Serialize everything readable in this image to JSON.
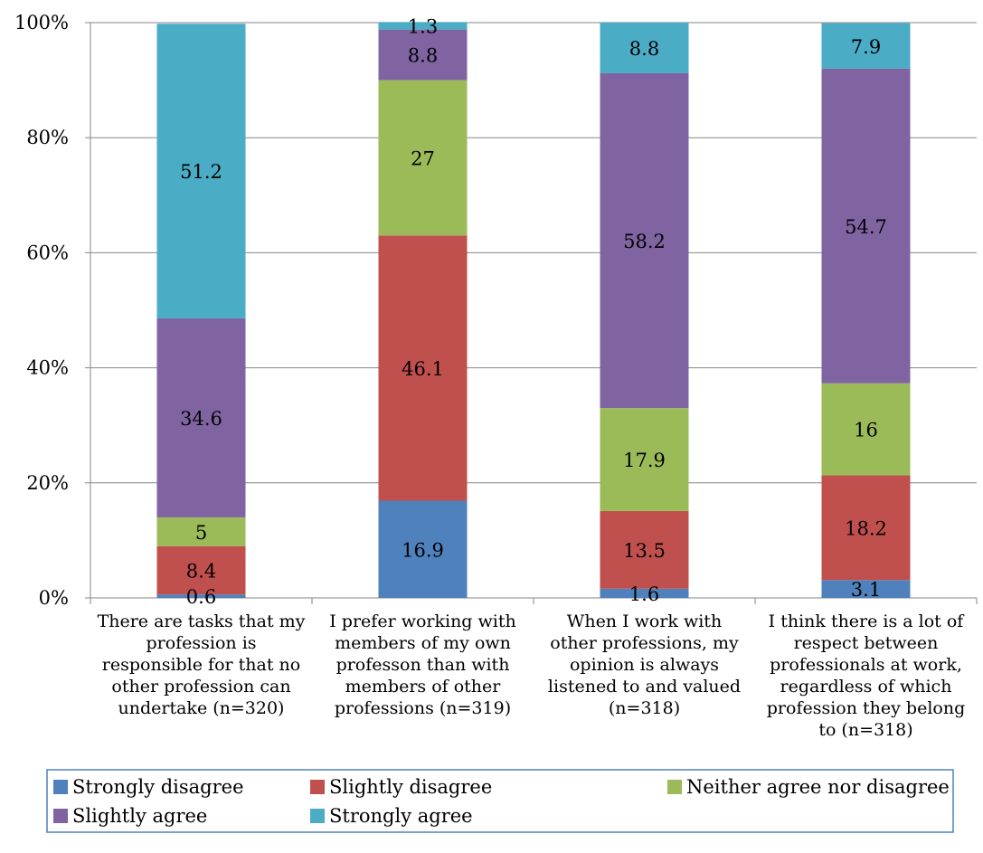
{
  "chart_data": {
    "type": "bar",
    "stacked": true,
    "orientation": "vertical",
    "ylim": [
      0,
      100
    ],
    "yticks": [
      "0%",
      "20%",
      "40%",
      "60%",
      "80%",
      "100%"
    ],
    "ytick_values": [
      0,
      20,
      40,
      60,
      80,
      100
    ],
    "grid": true,
    "legend_position": "bottom",
    "categories": [
      [
        "There are tasks that my",
        "profession is",
        "responsible for that no",
        "other profession can",
        "undertake (n=320)"
      ],
      [
        "I prefer working with",
        "members of my own",
        "professon than with",
        "members of other",
        "professions (n=319)"
      ],
      [
        "When I work with",
        "other professions, my",
        "opinion is always",
        "listened to and valued",
        "(n=318)"
      ],
      [
        "I think there is a lot of",
        "respect between",
        "professionals at work,",
        "regardless of which",
        "profession they belong",
        "to (n=318)"
      ]
    ],
    "series": [
      {
        "name": "Strongly disagree",
        "color": "#4F81BD",
        "values": [
          0.6,
          16.9,
          1.6,
          3.1
        ],
        "labels": [
          "0.6",
          "16.9",
          "1.6",
          "3.1"
        ]
      },
      {
        "name": "Slightly disagree",
        "color": "#C0504D",
        "values": [
          8.4,
          46.1,
          13.5,
          18.2
        ],
        "labels": [
          "8.4",
          "46.1",
          "13.5",
          "18.2"
        ]
      },
      {
        "name": "Neither agree nor disagree",
        "color": "#9BBB59",
        "values": [
          5,
          27,
          17.9,
          16
        ],
        "labels": [
          "5",
          "27",
          "17.9",
          "16"
        ]
      },
      {
        "name": "Slightly agree",
        "color": "#8064A2",
        "values": [
          34.6,
          8.8,
          58.2,
          54.7
        ],
        "labels": [
          "34.6",
          "8.8",
          "58.2",
          "54.7"
        ]
      },
      {
        "name": "Strongly agree",
        "color": "#4BACC6",
        "values": [
          51.2,
          1.3,
          8.8,
          7.9
        ],
        "labels": [
          "51.2",
          "1.3",
          "8.8",
          "7.9"
        ]
      }
    ]
  }
}
